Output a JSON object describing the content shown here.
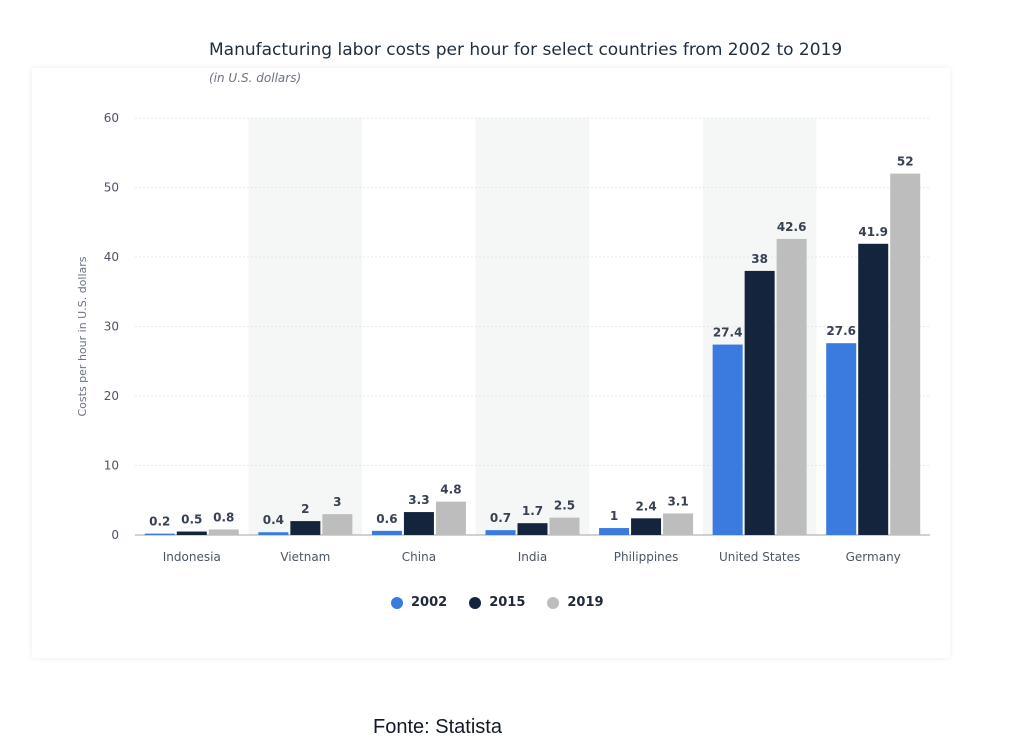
{
  "header": {
    "title": "Manufacturing labor costs per hour for select countries from 2002 to 2019",
    "subtitle": "(in U.S. dollars)"
  },
  "footer": {
    "source": "Fonte: Statista"
  },
  "chart_data": {
    "type": "bar",
    "title": "Manufacturing labor costs per hour for select countries from 2002 to 2019",
    "subtitle": "(in U.S. dollars)",
    "xlabel": "",
    "ylabel": "Costs per hour in U.S. dollars",
    "ylim": [
      0,
      60
    ],
    "yticks": [
      0,
      10,
      20,
      30,
      40,
      50,
      60
    ],
    "categories": [
      "Indonesia",
      "Vietnam",
      "China",
      "India",
      "Philippines",
      "United States",
      "Germany"
    ],
    "series": [
      {
        "name": "2002",
        "color": "#3b7be0",
        "values": [
          0.2,
          0.4,
          0.6,
          0.7,
          1,
          27.4,
          27.6
        ]
      },
      {
        "name": "2015",
        "color": "#14243d",
        "values": [
          0.5,
          2,
          3.3,
          1.7,
          2.4,
          38,
          41.9
        ]
      },
      {
        "name": "2019",
        "color": "#bdbdbd",
        "values": [
          0.8,
          3,
          4.8,
          2.5,
          3.1,
          42.6,
          52
        ]
      }
    ],
    "grid": true,
    "legend": "bottom-center",
    "colors": {
      "band": "#f5f7f7",
      "grid": "#e5e7eb",
      "axis": "#9ca3af",
      "text": "#374151"
    }
  }
}
